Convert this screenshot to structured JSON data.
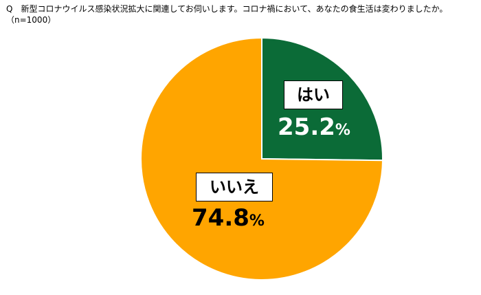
{
  "question": "Q　新型コロナウイルス感染状況拡大に関連してお伺いします。コロナ禍において、あなたの食生活は変わりましたか。",
  "sample_size": "（n=1000）",
  "colors": {
    "yes": "#0b6b37",
    "no": "#ffa500"
  },
  "chart_data": {
    "type": "pie",
    "title": "Q　新型コロナウイルス感染状況拡大に関連してお伺いします。コロナ禍において、あなたの食生活は変わりましたか。",
    "subtitle": "（n=1000）",
    "slices": [
      {
        "label": "はい",
        "value": 25.2,
        "value_text": "25.2",
        "unit": "%",
        "color": "#0b6b37",
        "text_color": "#ffffff"
      },
      {
        "label": "いいえ",
        "value": 74.8,
        "value_text": "74.8",
        "unit": "%",
        "color": "#ffa500",
        "text_color": "#000000"
      }
    ],
    "start_angle_deg": 0,
    "direction": "clockwise",
    "legend": "none"
  }
}
